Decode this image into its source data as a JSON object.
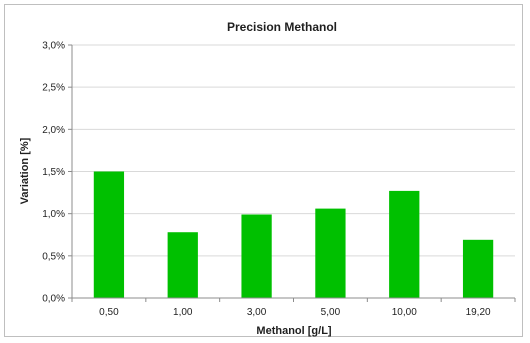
{
  "chart_data": {
    "type": "bar",
    "title": "Precision Methanol",
    "xlabel": "Methanol [g/L]",
    "ylabel": "Variation [%]",
    "categories": [
      "0,50",
      "1,00",
      "3,00",
      "5,00",
      "10,00",
      "19,20"
    ],
    "values": [
      1.5,
      0.78,
      0.99,
      1.06,
      1.27,
      0.69
    ],
    "ylim": [
      0,
      3.0
    ],
    "yticks": [
      0,
      0.5,
      1.0,
      1.5,
      2.0,
      2.5,
      3.0
    ],
    "ytick_labels": [
      "0,0%",
      "0,5%",
      "1,0%",
      "1,5%",
      "2,0%",
      "2,5%",
      "3,0%"
    ],
    "grid": true,
    "legend": "none",
    "bar_color": "#00c000"
  }
}
